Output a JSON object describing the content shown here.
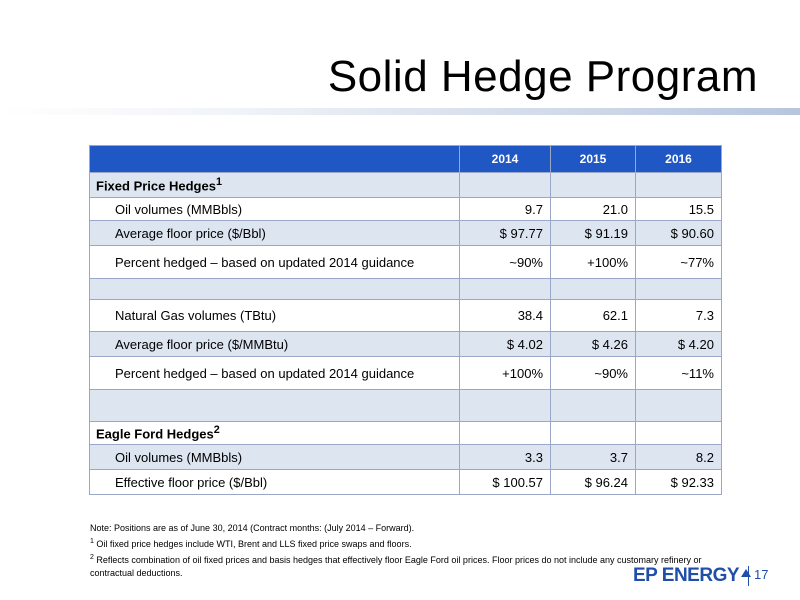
{
  "title": "Solid Hedge Program",
  "table": {
    "header": [
      "",
      "2014",
      "2015",
      "2016"
    ],
    "rows": [
      {
        "label": "Fixed Price Hedges",
        "sup": "1",
        "v": [
          "",
          "",
          ""
        ]
      },
      {
        "label": "Oil volumes (MMBbls)",
        "v": [
          "9.7",
          "21.0",
          "15.5"
        ]
      },
      {
        "label": "Average floor price ($/Bbl)",
        "v": [
          "$  97.77",
          "$ 91.19",
          "$ 90.60"
        ]
      },
      {
        "label": "Percent hedged – based on updated 2014 guidance",
        "v": [
          "~90%",
          "+100%",
          "~77%"
        ]
      },
      {
        "label": "",
        "v": [
          "",
          "",
          ""
        ]
      },
      {
        "label": "Natural Gas volumes (TBtu)",
        "v": [
          "38.4",
          "62.1",
          "7.3"
        ]
      },
      {
        "label": "Average floor price ($/MMBtu)",
        "v": [
          "$    4.02",
          "$ 4.26",
          "$ 4.20"
        ]
      },
      {
        "label": "Percent hedged – based on updated 2014 guidance",
        "v": [
          "+100%",
          "~90%",
          "~11%"
        ]
      },
      {
        "label": "",
        "v": [
          "",
          "",
          ""
        ]
      },
      {
        "label": "Eagle Ford Hedges",
        "sup": "2",
        "v": [
          "",
          "",
          ""
        ]
      },
      {
        "label": "Oil volumes (MMBbls)",
        "v": [
          "3.3",
          "3.7",
          "8.2"
        ]
      },
      {
        "label": "Effective floor price ($/Bbl)",
        "v": [
          "$ 100.57",
          "$  96.24",
          "$ 92.33"
        ]
      }
    ]
  },
  "notes": {
    "note": "Note:  Positions are as of June 30, 2014 (Contract months:  (July 2014 – Forward).",
    "fn1_mark": "1",
    "fn1": " Oil fixed price hedges include WTI, Brent and LLS fixed price swaps and floors.",
    "fn2_mark": "2",
    "fn2": " Reflects combination of oil fixed prices and basis hedges that effectively floor Eagle Ford oil  prices.  Floor prices do not include any customary refinery or contractual deductions."
  },
  "footer": {
    "logo": "EP ENERGY",
    "page": "17"
  },
  "colors": {
    "header_blue": "#1f57c4",
    "row_shade": "#dde5f1",
    "logo_blue": "#1f4fa8"
  }
}
